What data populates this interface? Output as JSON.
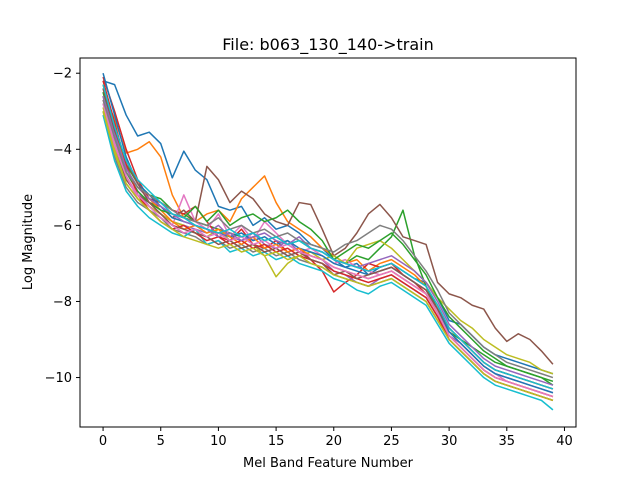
{
  "chart_data": {
    "type": "line",
    "title": "File: b063_130_140->train",
    "xlabel": "Mel Band Feature Number",
    "ylabel": "Log Magnitude",
    "xlim": [
      -2,
      41
    ],
    "ylim": [
      -11.3,
      -1.6
    ],
    "xticks": [
      0,
      5,
      10,
      15,
      20,
      25,
      30,
      35,
      40
    ],
    "yticks": [
      -2,
      -4,
      -6,
      -8,
      -10
    ],
    "grid": false,
    "legend": "none",
    "palette": [
      "#1f77b4",
      "#ff7f0e",
      "#2ca02c",
      "#d62728",
      "#9467bd",
      "#8c564b",
      "#e377c2",
      "#7f7f7f",
      "#bcbd22",
      "#17becf"
    ],
    "x": [
      0,
      1,
      2,
      3,
      4,
      5,
      6,
      7,
      8,
      9,
      10,
      11,
      12,
      13,
      14,
      15,
      16,
      17,
      18,
      19,
      20,
      21,
      22,
      23,
      24,
      25,
      26,
      27,
      28,
      29,
      30,
      31,
      32,
      33,
      34,
      35,
      36,
      37,
      38,
      39
    ],
    "series": [
      {
        "values": [
          -2.2,
          -2.3,
          -3.1,
          -3.65,
          -3.55,
          -3.85,
          -4.75,
          -4.05,
          -4.55,
          -4.8,
          -5.5,
          -5.6,
          -5.5,
          -6.0,
          -5.8,
          -6.1,
          -6.0,
          -6.2,
          -6.5,
          -6.6,
          -6.9,
          -7.1,
          -7.0,
          -7.3,
          -7.1,
          -7.0,
          -7.2,
          -7.4,
          -7.5,
          -7.9,
          -8.5,
          -8.6,
          -8.9,
          -9.2,
          -9.4,
          -9.5,
          -9.6,
          -9.7,
          -9.8,
          -9.9
        ]
      },
      {
        "values": [
          -2.5,
          -3.2,
          -4.1,
          -4.0,
          -3.8,
          -4.2,
          -5.2,
          -5.8,
          -5.9,
          -5.7,
          -5.6,
          -5.9,
          -5.3,
          -5.0,
          -4.7,
          -5.4,
          -5.9,
          -6.1,
          -6.3,
          -6.6,
          -6.8,
          -7.0,
          -6.9,
          -7.2,
          -7.0,
          -6.9,
          -7.1,
          -7.3,
          -7.6,
          -8.1,
          -8.7,
          -9.0,
          -9.3,
          -9.6,
          -9.8,
          -9.9,
          -10.0,
          -10.1,
          -10.2,
          -10.3
        ]
      },
      {
        "values": [
          -2.8,
          -3.6,
          -4.4,
          -4.9,
          -5.2,
          -5.3,
          -5.6,
          -5.7,
          -5.9,
          -6.0,
          -6.1,
          -6.2,
          -6.3,
          -6.2,
          -6.4,
          -6.3,
          -6.5,
          -6.4,
          -6.6,
          -6.7,
          -6.9,
          -7.0,
          -6.8,
          -6.9,
          -6.6,
          -6.3,
          -5.6,
          -6.8,
          -7.6,
          -8.2,
          -8.8,
          -9.0,
          -9.2,
          -9.4,
          -9.6,
          -9.7,
          -9.8,
          -9.9,
          -10.0,
          -10.1
        ]
      },
      {
        "values": [
          -2.1,
          -3.0,
          -4.0,
          -4.8,
          -5.3,
          -5.4,
          -5.6,
          -5.7,
          -5.5,
          -5.9,
          -6.3,
          -6.4,
          -6.1,
          -6.5,
          -6.6,
          -6.4,
          -6.7,
          -6.6,
          -6.9,
          -7.2,
          -7.75,
          -7.5,
          -7.3,
          -7.0,
          -7.1,
          -7.0,
          -7.3,
          -7.5,
          -7.8,
          -8.3,
          -8.9,
          -9.2,
          -9.5,
          -9.8,
          -10.0,
          -10.1,
          -10.2,
          -10.3,
          -10.4,
          -10.5
        ]
      },
      {
        "values": [
          -2.4,
          -3.5,
          -4.6,
          -5.1,
          -5.5,
          -5.7,
          -5.9,
          -6.0,
          -6.1,
          -6.2,
          -6.0,
          -6.3,
          -6.4,
          -6.2,
          -6.5,
          -6.6,
          -6.4,
          -6.7,
          -6.8,
          -6.9,
          -7.2,
          -7.3,
          -7.5,
          -7.6,
          -7.4,
          -7.3,
          -7.5,
          -7.7,
          -7.9,
          -8.4,
          -8.9,
          -9.1,
          -9.4,
          -9.7,
          -9.9,
          -10.0,
          -10.1,
          -10.2,
          -10.3,
          -10.4
        ]
      },
      {
        "values": [
          -2.6,
          -3.9,
          -4.8,
          -5.2,
          -5.4,
          -5.5,
          -5.8,
          -5.6,
          -5.9,
          -4.45,
          -4.8,
          -5.4,
          -5.1,
          -5.3,
          -5.7,
          -5.9,
          -6.0,
          -5.4,
          -5.45,
          -6.1,
          -6.8,
          -6.6,
          -6.2,
          -5.7,
          -5.45,
          -5.8,
          -6.3,
          -6.4,
          -6.5,
          -7.5,
          -7.8,
          -7.9,
          -8.1,
          -8.2,
          -8.7,
          -9.05,
          -8.85,
          -9.0,
          -9.3,
          -9.65
        ]
      },
      {
        "values": [
          -2.7,
          -3.8,
          -4.7,
          -5.3,
          -5.6,
          -5.8,
          -6.0,
          -5.2,
          -5.9,
          -6.1,
          -5.7,
          -6.3,
          -6.0,
          -6.4,
          -5.9,
          -6.2,
          -6.5,
          -6.7,
          -6.6,
          -6.8,
          -7.0,
          -6.9,
          -7.1,
          -7.2,
          -7.3,
          -7.2,
          -7.4,
          -7.6,
          -7.8,
          -8.2,
          -8.8,
          -9.1,
          -9.4,
          -9.7,
          -9.9,
          -10.1,
          -10.2,
          -10.3,
          -10.4,
          -10.5
        ]
      },
      {
        "values": [
          -3.0,
          -4.2,
          -5.0,
          -5.4,
          -5.6,
          -5.8,
          -6.1,
          -6.2,
          -6.3,
          -6.5,
          -6.4,
          -6.6,
          -6.5,
          -6.7,
          -6.6,
          -6.8,
          -6.7,
          -6.9,
          -7.0,
          -7.1,
          -7.3,
          -7.4,
          -7.5,
          -7.6,
          -7.5,
          -7.4,
          -7.6,
          -7.8,
          -8.0,
          -8.5,
          -9.0,
          -9.3,
          -9.6,
          -9.9,
          -10.1,
          -10.2,
          -10.3,
          -10.4,
          -10.5,
          -10.6
        ]
      },
      {
        "values": [
          -2.9,
          -4.0,
          -4.9,
          -5.3,
          -5.5,
          -5.7,
          -5.9,
          -6.0,
          -6.2,
          -6.3,
          -6.1,
          -6.4,
          -6.6,
          -6.5,
          -6.8,
          -7.35,
          -7.0,
          -6.8,
          -6.7,
          -6.9,
          -6.8,
          -7.0,
          -6.6,
          -6.5,
          -6.4,
          -6.6,
          -6.9,
          -7.2,
          -7.5,
          -7.9,
          -8.2,
          -8.5,
          -8.7,
          -9.0,
          -9.2,
          -9.4,
          -9.5,
          -9.6,
          -9.8,
          -9.9
        ]
      },
      {
        "values": [
          -3.1,
          -4.3,
          -5.1,
          -5.5,
          -5.8,
          -6.0,
          -6.2,
          -6.3,
          -6.1,
          -6.5,
          -6.4,
          -6.7,
          -6.6,
          -6.8,
          -6.7,
          -6.9,
          -6.8,
          -7.0,
          -7.1,
          -7.2,
          -7.4,
          -7.5,
          -7.7,
          -7.8,
          -7.6,
          -7.5,
          -7.7,
          -7.9,
          -8.1,
          -8.6,
          -9.1,
          -9.4,
          -9.7,
          -10.0,
          -10.2,
          -10.3,
          -10.4,
          -10.5,
          -10.6,
          -10.85
        ]
      },
      {
        "values": [
          -2.0,
          -3.1,
          -4.2,
          -4.9,
          -5.2,
          -5.5,
          -5.8,
          -5.9,
          -6.0,
          -6.1,
          -6.2,
          -6.3,
          -6.2,
          -6.4,
          -6.3,
          -6.5,
          -6.4,
          -6.6,
          -6.7,
          -6.8,
          -7.0,
          -7.1,
          -7.2,
          -7.3,
          -7.2,
          -7.1,
          -7.3,
          -7.5,
          -7.7,
          -8.2,
          -8.8,
          -9.1,
          -9.4,
          -9.7,
          -9.9,
          -10.0,
          -10.1,
          -10.2,
          -10.3,
          -10.4
        ]
      },
      {
        "values": [
          -2.3,
          -3.4,
          -4.5,
          -5.0,
          -5.3,
          -5.6,
          -5.9,
          -6.1,
          -6.0,
          -6.2,
          -6.1,
          -6.3,
          -6.5,
          -6.3,
          -6.6,
          -6.5,
          -6.7,
          -6.6,
          -6.8,
          -6.9,
          -7.1,
          -7.2,
          -7.3,
          -7.4,
          -7.3,
          -7.2,
          -7.4,
          -7.6,
          -7.8,
          -8.3,
          -8.9,
          -9.2,
          -9.5,
          -9.8,
          -10.0,
          -10.1,
          -10.2,
          -10.3,
          -10.4,
          -10.5
        ]
      },
      {
        "values": [
          -2.5,
          -3.7,
          -4.6,
          -5.1,
          -5.4,
          -5.6,
          -5.7,
          -5.8,
          -5.5,
          -5.9,
          -5.6,
          -6.0,
          -5.8,
          -5.7,
          -5.9,
          -5.8,
          -5.6,
          -5.9,
          -6.1,
          -6.4,
          -6.9,
          -6.7,
          -6.5,
          -6.6,
          -6.4,
          -6.2,
          -6.5,
          -6.9,
          -7.3,
          -7.9,
          -8.4,
          -8.7,
          -9.0,
          -9.3,
          -9.5,
          -9.7,
          -9.8,
          -9.9,
          -10.0,
          -10.2
        ]
      },
      {
        "values": [
          -2.2,
          -3.3,
          -4.4,
          -5.2,
          -5.6,
          -5.9,
          -6.1,
          -6.0,
          -6.2,
          -6.4,
          -6.3,
          -6.5,
          -6.4,
          -6.6,
          -6.5,
          -6.7,
          -6.6,
          -6.8,
          -6.9,
          -7.0,
          -7.2,
          -7.3,
          -7.4,
          -7.5,
          -7.4,
          -7.3,
          -7.5,
          -7.7,
          -7.9,
          -8.4,
          -9.0,
          -9.3,
          -9.6,
          -9.9,
          -10.1,
          -10.2,
          -10.3,
          -10.4,
          -10.5,
          -10.6
        ]
      },
      {
        "values": [
          -2.6,
          -3.6,
          -4.5,
          -5.0,
          -5.3,
          -5.5,
          -5.7,
          -5.9,
          -6.0,
          -6.1,
          -6.3,
          -6.2,
          -6.4,
          -6.3,
          -6.2,
          -6.4,
          -6.5,
          -6.3,
          -6.6,
          -6.7,
          -6.9,
          -7.0,
          -7.1,
          -7.0,
          -6.9,
          -6.8,
          -7.0,
          -7.2,
          -7.5,
          -8.0,
          -8.6,
          -8.9,
          -9.2,
          -9.5,
          -9.7,
          -9.8,
          -9.9,
          -10.0,
          -10.1,
          -10.2
        ]
      },
      {
        "values": [
          -2.4,
          -3.5,
          -4.3,
          -4.9,
          -5.4,
          -5.7,
          -6.0,
          -6.1,
          -6.2,
          -6.3,
          -6.5,
          -6.4,
          -6.6,
          -6.5,
          -6.7,
          -6.6,
          -6.8,
          -6.7,
          -6.9,
          -7.0,
          -7.3,
          -7.2,
          -7.4,
          -7.3,
          -7.2,
          -7.1,
          -7.3,
          -7.5,
          -7.7,
          -8.2,
          -8.7,
          -9.0,
          -9.3,
          -9.6,
          -9.8,
          -9.9,
          -10.0,
          -10.1,
          -10.2,
          -10.3
        ]
      },
      {
        "values": [
          -2.8,
          -3.9,
          -4.7,
          -5.2,
          -5.5,
          -5.8,
          -6.0,
          -6.2,
          -6.1,
          -6.3,
          -6.2,
          -6.4,
          -6.3,
          -6.5,
          -6.4,
          -6.6,
          -6.5,
          -6.7,
          -6.8,
          -6.9,
          -7.1,
          -7.2,
          -7.3,
          -7.4,
          -7.3,
          -7.2,
          -7.4,
          -7.6,
          -7.8,
          -8.3,
          -8.9,
          -9.2,
          -9.5,
          -9.8,
          -10.0,
          -10.1,
          -10.2,
          -10.3,
          -10.4,
          -10.5
        ]
      },
      {
        "values": [
          -2.7,
          -3.7,
          -4.6,
          -5.0,
          -5.2,
          -5.4,
          -5.6,
          -5.8,
          -5.9,
          -6.0,
          -5.8,
          -6.1,
          -6.0,
          -6.2,
          -6.1,
          -6.3,
          -6.2,
          -6.4,
          -6.5,
          -6.6,
          -6.7,
          -6.5,
          -6.4,
          -6.2,
          -6.0,
          -6.1,
          -6.4,
          -6.8,
          -7.2,
          -7.7,
          -8.3,
          -8.6,
          -8.9,
          -9.2,
          -9.4,
          -9.6,
          -9.7,
          -9.8,
          -9.9,
          -10.0
        ]
      },
      {
        "values": [
          -3.0,
          -4.1,
          -4.9,
          -5.3,
          -5.6,
          -5.9,
          -6.1,
          -6.3,
          -6.4,
          -6.5,
          -6.6,
          -6.5,
          -6.7,
          -6.6,
          -6.8,
          -6.7,
          -6.9,
          -6.8,
          -7.0,
          -7.1,
          -7.3,
          -7.4,
          -7.5,
          -7.6,
          -7.5,
          -7.4,
          -7.6,
          -7.8,
          -8.0,
          -8.5,
          -9.0,
          -9.3,
          -9.6,
          -9.9,
          -10.1,
          -10.2,
          -10.3,
          -10.4,
          -10.5,
          -10.6
        ]
      },
      {
        "values": [
          -2.3,
          -3.4,
          -4.3,
          -4.8,
          -5.1,
          -5.4,
          -5.7,
          -5.8,
          -6.0,
          -6.1,
          -6.2,
          -6.1,
          -6.3,
          -6.2,
          -6.4,
          -6.3,
          -6.5,
          -6.4,
          -6.6,
          -6.7,
          -6.9,
          -7.0,
          -7.1,
          -7.2,
          -7.1,
          -7.0,
          -7.2,
          -7.4,
          -7.6,
          -8.1,
          -8.7,
          -9.0,
          -9.3,
          -9.6,
          -9.8,
          -9.9,
          -10.0,
          -10.1,
          -10.2,
          -10.3
        ]
      }
    ]
  }
}
